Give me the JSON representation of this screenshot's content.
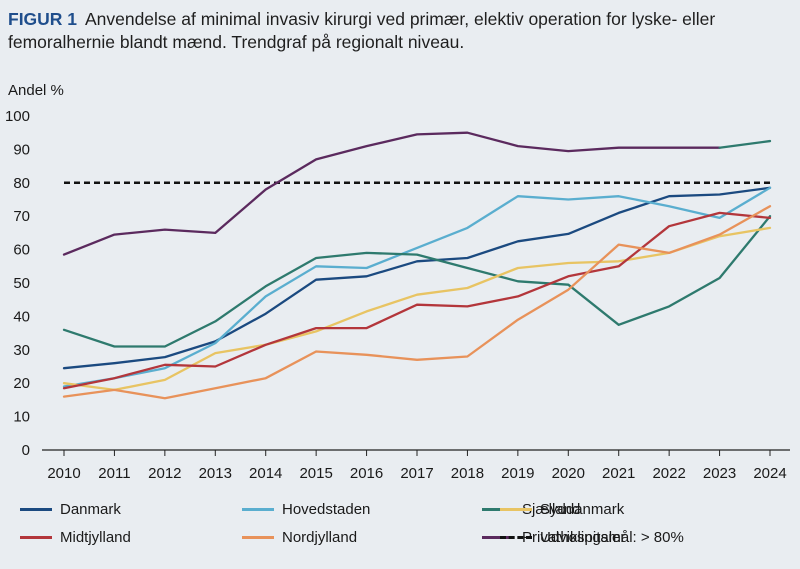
{
  "header": {
    "figure_label": "FIGUR 1",
    "title": "Anvendelse af minimal invasiv kirurgi ved primær, elektiv operation for lyske- eller femoralhernie blandt mænd. Trendgraf på regionalt niveau."
  },
  "chart_data": {
    "type": "line",
    "ylabel": "Andel %",
    "xlabel": "",
    "ylim": [
      0,
      100
    ],
    "yticks": [
      0,
      10,
      20,
      30,
      40,
      50,
      60,
      70,
      80,
      90,
      100
    ],
    "x": [
      "2010",
      "2011",
      "2012",
      "2013",
      "2014",
      "2015",
      "2016",
      "2017",
      "2018",
      "2019",
      "2020",
      "2021",
      "2022",
      "2023",
      "2024"
    ],
    "grid": false,
    "legend_position": "bottom",
    "series": [
      {
        "name": "Danmark",
        "color": "#1b4a80",
        "values": [
          24.5,
          26,
          27.8,
          32.5,
          40.8,
          51,
          52,
          56.5,
          57.5,
          62.5,
          64.7,
          71,
          76,
          76.5,
          78.5
        ]
      },
      {
        "name": "Hovedstaden",
        "color": "#5aaecf",
        "values": [
          19,
          21.5,
          24.5,
          32,
          46,
          55,
          54.5,
          60.5,
          66.5,
          76,
          75,
          76,
          73,
          69.5,
          78.5
        ]
      },
      {
        "name": "Sjælland",
        "color": "#2e7a6e",
        "values": [
          36,
          31,
          31,
          38.5,
          49,
          57.5,
          59,
          58.5,
          54.5,
          50.5,
          49.5,
          37.5,
          43,
          51.5,
          70
        ]
      },
      {
        "name": "Syddanmark",
        "color": "#e8c463",
        "values": [
          20,
          18,
          21,
          29,
          31.5,
          35.5,
          41.5,
          46.5,
          48.5,
          54.5,
          56,
          56.5,
          59,
          64,
          66.5
        ]
      },
      {
        "name": "Midtjylland",
        "color": "#b3363b",
        "values": [
          18.5,
          21.5,
          25.5,
          25,
          31.5,
          36.5,
          36.5,
          43.5,
          43,
          46,
          52,
          55,
          67,
          71,
          69.5
        ]
      },
      {
        "name": "Nordjylland",
        "color": "#e8925a",
        "values": [
          16,
          18,
          15.5,
          18.5,
          21.5,
          29.5,
          28.5,
          27,
          28,
          39,
          48,
          61.5,
          59,
          64.5,
          73
        ]
      },
      {
        "name": "Privathospitaler",
        "color": "#5b2a5e",
        "values": [
          58.5,
          64.5,
          66,
          65,
          78,
          87,
          91,
          94.5,
          95,
          91,
          89.5,
          90.5,
          90.5,
          90.5,
          null
        ]
      },
      {
        "name": "Udviklingsmål: > 80%",
        "color": "#111111",
        "dashed": true,
        "values": [
          80,
          80,
          80,
          80,
          80,
          80,
          80,
          80,
          80,
          80,
          80,
          80,
          80,
          80,
          80
        ]
      }
    ],
    "sjaelland_2024_tail": {
      "from_year": "2023",
      "to_year": "2024",
      "values": [
        90.5,
        92.5
      ],
      "color": "#2e7a6e"
    }
  }
}
